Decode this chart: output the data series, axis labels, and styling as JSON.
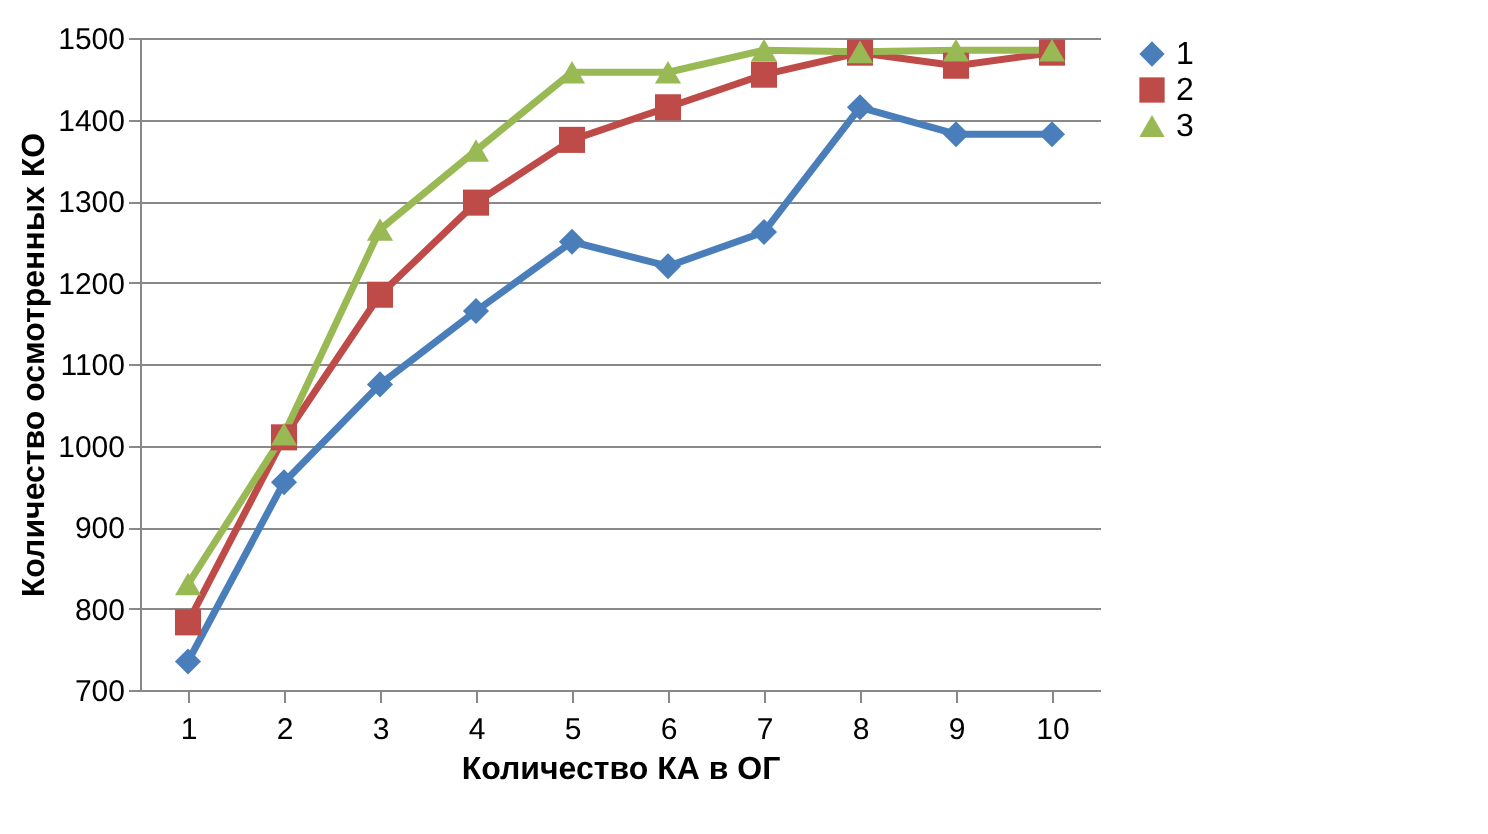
{
  "chart_data": {
    "type": "line",
    "xlabel": "Количество  КА в ОГ",
    "ylabel": "Количество  осмотренных КО",
    "categories": [
      "1",
      "2",
      "3",
      "4",
      "5",
      "6",
      "7",
      "8",
      "9",
      "10"
    ],
    "series": [
      {
        "name": "1",
        "color": "#4a7ebb",
        "marker": "diamond",
        "values": [
          735,
          955,
          1075,
          1165,
          1250,
          1220,
          1262,
          1415,
          1382,
          1382
        ]
      },
      {
        "name": "2",
        "color": "#be4b48",
        "marker": "square",
        "values": [
          783,
          1010,
          1185,
          1298,
          1375,
          1415,
          1455,
          1482,
          1466,
          1482
        ]
      },
      {
        "name": "3",
        "color": "#98b954",
        "marker": "triangle",
        "values": [
          830,
          1014,
          1265,
          1362,
          1458,
          1458,
          1485,
          1483,
          1485,
          1485
        ]
      }
    ],
    "ylim": [
      700,
      1500
    ],
    "yticks": [
      700,
      800,
      900,
      1000,
      1100,
      1200,
      1300,
      1400,
      1500
    ],
    "grid": "y",
    "legend": "right",
    "line_style": "solid"
  }
}
